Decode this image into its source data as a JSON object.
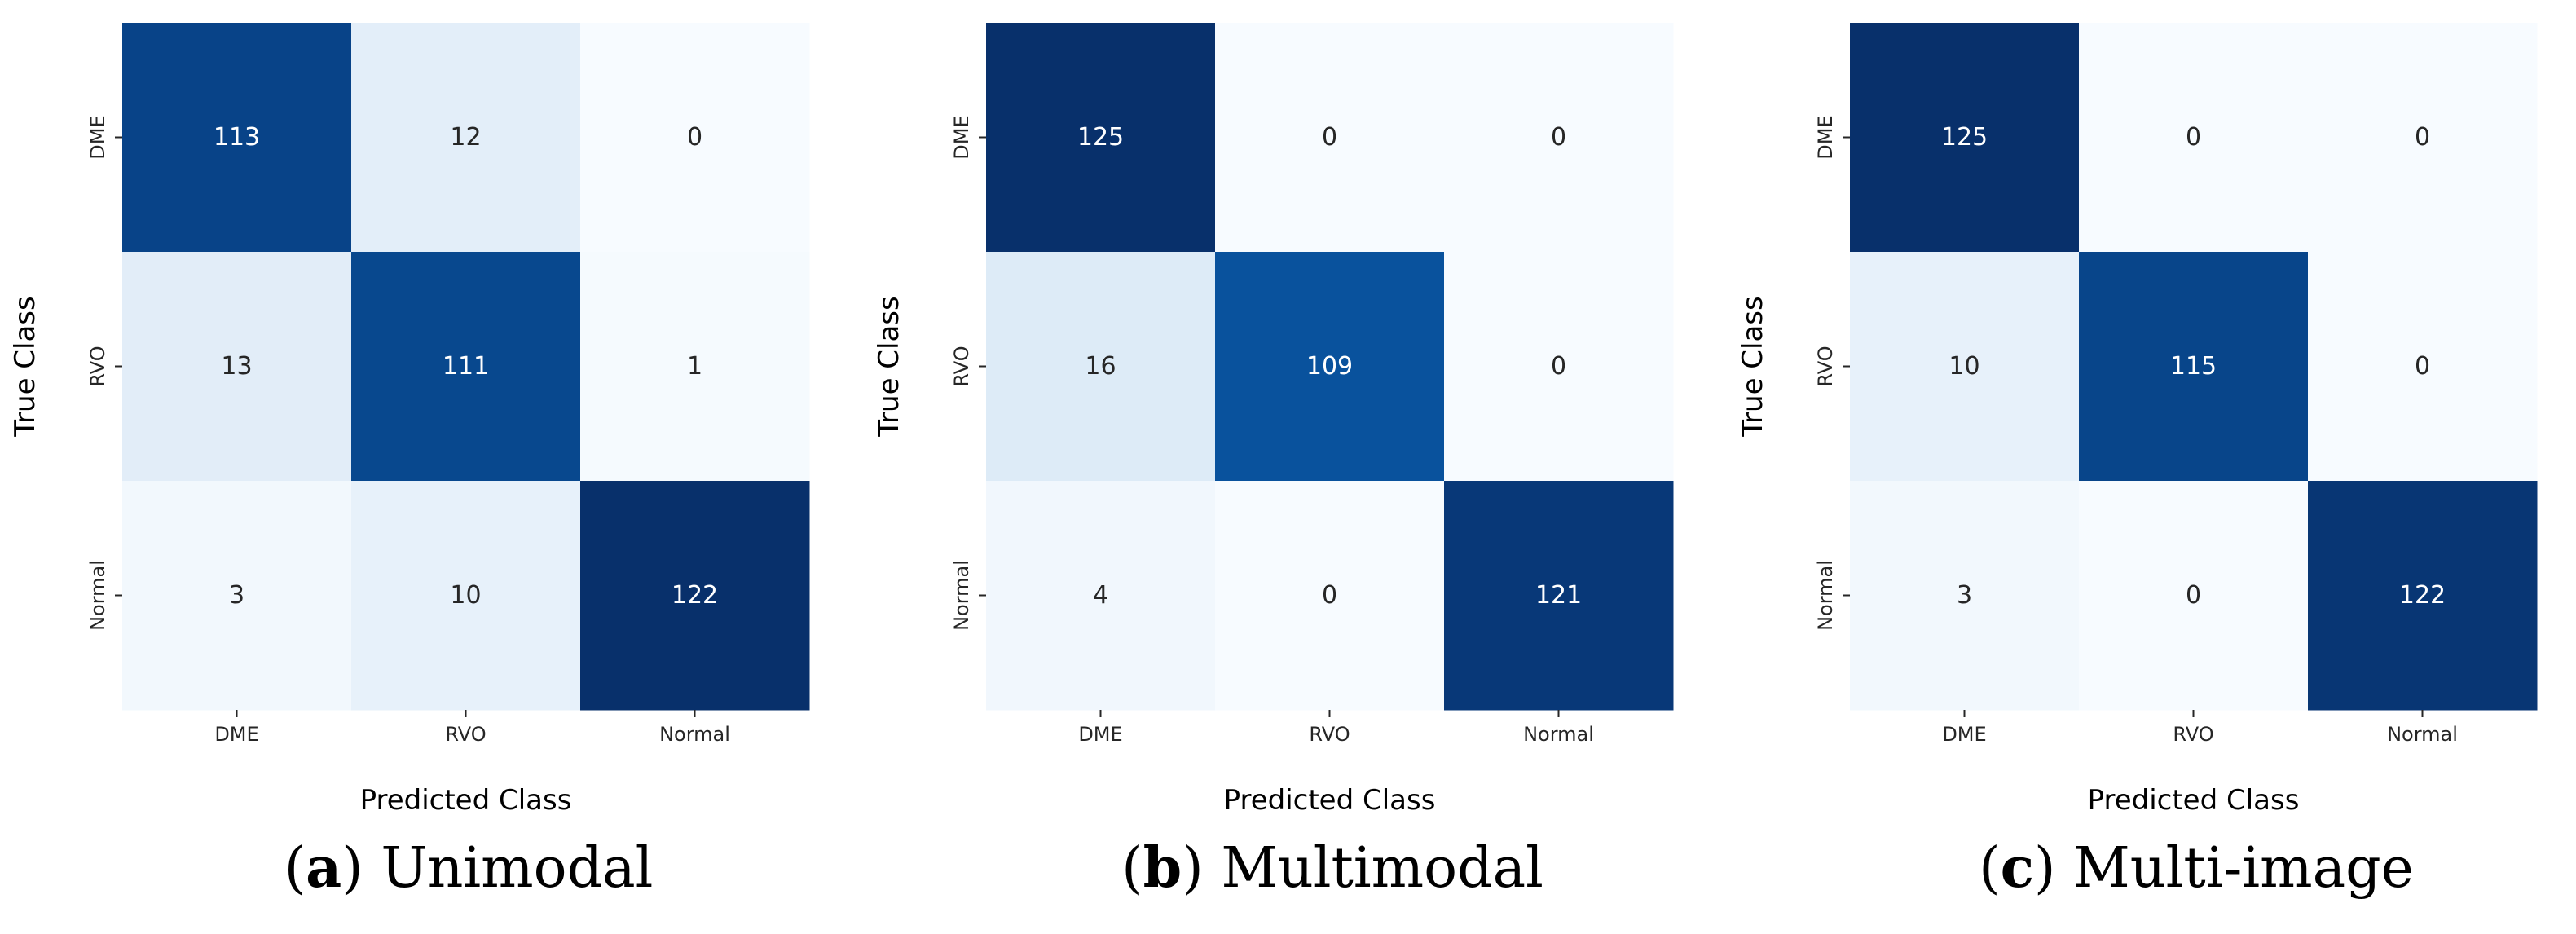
{
  "figure": {
    "panels": [
      {
        "tag": "a",
        "title": "Unimodal",
        "xlabel": "Predicted Class",
        "ylabel": "True Class"
      },
      {
        "tag": "b",
        "title": "Multimodal",
        "xlabel": "Predicted Class",
        "ylabel": "True Class"
      },
      {
        "tag": "c",
        "title": "Multi-image",
        "xlabel": "Predicted Class",
        "ylabel": "True Class"
      }
    ]
  },
  "colors": {
    "cmap": "Blues",
    "low": "#f7fbff",
    "high": "#08306b",
    "text_on_light": "#262626",
    "text_on_dark": "#ffffff"
  },
  "chart_data": [
    {
      "type": "heatmap",
      "title": "Unimodal",
      "xlabel": "Predicted Class",
      "ylabel": "True Class",
      "x_categories": [
        "DME",
        "RVO",
        "Normal"
      ],
      "y_categories": [
        "DME",
        "RVO",
        "Normal"
      ],
      "values": [
        [
          113,
          12,
          0
        ],
        [
          13,
          111,
          1
        ],
        [
          3,
          10,
          122
        ]
      ],
      "vmin": 0,
      "vmax": 122,
      "colorbar": false,
      "annotations": true
    },
    {
      "type": "heatmap",
      "title": "Multimodal",
      "xlabel": "Predicted Class",
      "ylabel": "True Class",
      "x_categories": [
        "DME",
        "RVO",
        "Normal"
      ],
      "y_categories": [
        "DME",
        "RVO",
        "Normal"
      ],
      "values": [
        [
          125,
          0,
          0
        ],
        [
          16,
          109,
          0
        ],
        [
          4,
          0,
          121
        ]
      ],
      "vmin": 0,
      "vmax": 125,
      "colorbar": false,
      "annotations": true
    },
    {
      "type": "heatmap",
      "title": "Multi-image",
      "xlabel": "Predicted Class",
      "ylabel": "True Class",
      "x_categories": [
        "DME",
        "RVO",
        "Normal"
      ],
      "y_categories": [
        "DME",
        "RVO",
        "Normal"
      ],
      "values": [
        [
          125,
          0,
          0
        ],
        [
          10,
          115,
          0
        ],
        [
          3,
          0,
          122
        ]
      ],
      "vmin": 0,
      "vmax": 125,
      "colorbar": false,
      "annotations": true
    }
  ]
}
